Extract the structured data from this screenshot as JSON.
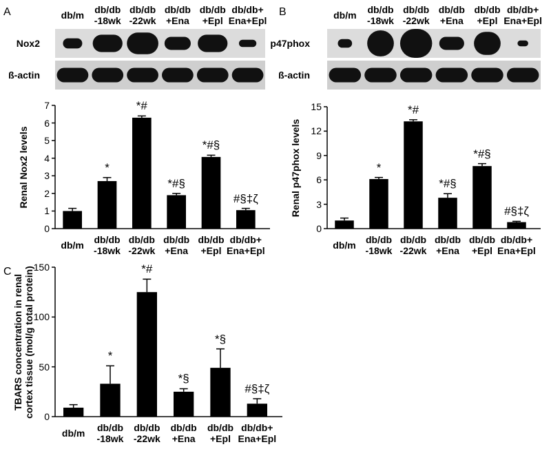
{
  "chart_data": [
    {
      "type": "bar",
      "panel": "A",
      "blot": {
        "columns": [
          "db/m",
          "db/db\n-18wk",
          "db/db\n-22wk",
          "db/db\n+Ena",
          "db/db\n+Epl",
          "db/db+\nEna+Epl"
        ],
        "rows": [
          "Nox2",
          "ß-actin"
        ]
      },
      "ylabel": "Renal Nox2 levels",
      "categories": [
        "db/m",
        "db/db\n-18wk",
        "db/db\n-22wk",
        "db/db\n+Ena",
        "db/db\n+Epl",
        "db/db+\nEna+Epl"
      ],
      "values": [
        1.0,
        2.7,
        6.3,
        1.9,
        4.07,
        1.05
      ],
      "errors": [
        0.15,
        0.2,
        0.1,
        0.1,
        0.1,
        0.1
      ],
      "annotations": [
        null,
        "*",
        "*#",
        "*#§",
        "*#§",
        "#§‡ζ"
      ],
      "color": "#000000",
      "ylim": [
        0,
        7
      ],
      "yticks": [
        0,
        1,
        2,
        3,
        4,
        5,
        6,
        7
      ]
    },
    {
      "type": "bar",
      "panel": "B",
      "blot": {
        "columns": [
          "db/m",
          "db/db\n-18wk",
          "db/db\n-22wk",
          "db/db\n+Ena",
          "db/db\n+Epl",
          "db/db+\nEna+Epl"
        ],
        "rows": [
          "p47phox",
          "ß-actin"
        ]
      },
      "ylabel": "Renal p47phox levels",
      "categories": [
        "db/m",
        "db/db\n-18wk",
        "db/db\n-22wk",
        "db/db\n+Ena",
        "db/db\n+Epl",
        "db/db+\nEna+Epl"
      ],
      "values": [
        1.0,
        6.1,
        13.2,
        3.8,
        7.7,
        0.8
      ],
      "errors": [
        0.3,
        0.2,
        0.2,
        0.5,
        0.3,
        0.1
      ],
      "annotations": [
        null,
        "*",
        "*#",
        "*#§",
        "*#§",
        "#§‡ζ"
      ],
      "color": "#000000",
      "ylim": [
        0,
        15
      ],
      "yticks": [
        0,
        3,
        6,
        9,
        12,
        15
      ]
    },
    {
      "type": "bar",
      "panel": "C",
      "ylabel": "TBARS concentration in renal\ncortex tissue (mol/g total protein)",
      "categories": [
        "db/m",
        "db/db\n-18wk",
        "db/db\n-22wk",
        "db/db\n+Ena",
        "db/db\n+Epl",
        "db/db+\nEna+Epl"
      ],
      "values": [
        9,
        33,
        125,
        25,
        49,
        13
      ],
      "errors": [
        3,
        18,
        13,
        3,
        19,
        5
      ],
      "annotations": [
        null,
        "*",
        "*#",
        "*§",
        "*§",
        "#§‡ζ"
      ],
      "color": "#000000",
      "ylim": [
        0,
        150
      ],
      "yticks": [
        0,
        50,
        100,
        150
      ]
    }
  ]
}
